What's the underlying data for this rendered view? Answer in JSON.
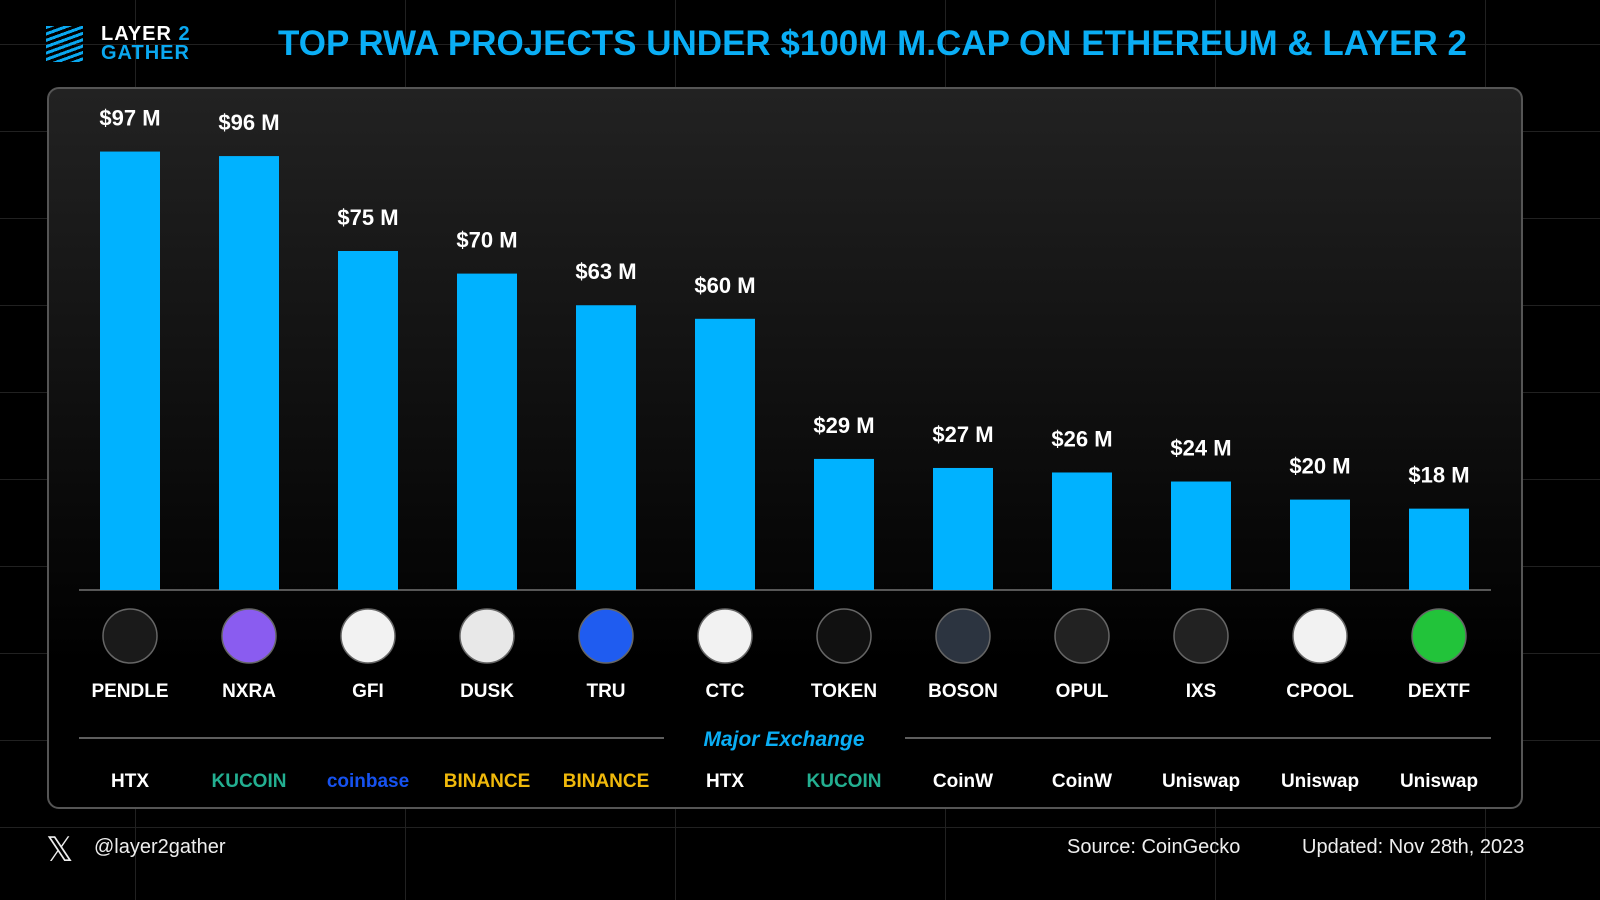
{
  "brand": {
    "line1": "LAYER",
    "line1_accent": "2",
    "line2": "GATHER"
  },
  "title": "TOP RWA PROJECTS UNDER $100M M.CAP ON ETHEREUM & LAYER 2",
  "chart_data": {
    "type": "bar",
    "title": "TOP RWA PROJECTS UNDER $100M M.CAP ON ETHEREUM & LAYER 2",
    "categories": [
      "PENDLE",
      "NXRA",
      "GFI",
      "DUSK",
      "TRU",
      "CTC",
      "TOKEN",
      "BOSON",
      "OPUL",
      "IXS",
      "CPOOL",
      "DEXTF"
    ],
    "values": [
      97,
      96,
      75,
      70,
      63,
      60,
      29,
      27,
      26,
      24,
      20,
      18
    ],
    "labels": [
      "$97 M",
      "$96 M",
      "$75 M",
      "$70 M",
      "$63 M",
      "$60 M",
      "$29 M",
      "$27 M",
      "$26 M",
      "$24 M",
      "$20 M",
      "$18 M"
    ],
    "unit": "USD millions",
    "ylim": [
      0,
      100
    ],
    "grid": false,
    "bar_color": "#00b2ff",
    "icon_colors": [
      "#1a1a1a",
      "#8a5cf0",
      "#f2f2f2",
      "#e8e8e8",
      "#1f5cf0",
      "#f2f2f2",
      "#111",
      "#2c3440",
      "#222",
      "#222",
      "#f2f2f2",
      "#22c33a"
    ]
  },
  "exchange_header": "Major Exchange",
  "exchanges": [
    {
      "name": "HTX",
      "color": "#ffffff"
    },
    {
      "name": "KUCOIN",
      "color": "#23af91"
    },
    {
      "name": "coinbase",
      "color": "#1652f0"
    },
    {
      "name": "BINANCE",
      "color": "#f0b90b"
    },
    {
      "name": "BINANCE",
      "color": "#f0b90b"
    },
    {
      "name": "HTX",
      "color": "#ffffff"
    },
    {
      "name": "KUCOIN",
      "color": "#23af91"
    },
    {
      "name": "CoinW",
      "color": "#ffffff"
    },
    {
      "name": "CoinW",
      "color": "#ffffff"
    },
    {
      "name": "Uniswap",
      "color": "#ffffff"
    },
    {
      "name": "Uniswap",
      "color": "#ffffff"
    },
    {
      "name": "Uniswap",
      "color": "#ffffff"
    }
  ],
  "footer": {
    "handle": "@layer2gather",
    "source": "Source: CoinGecko",
    "updated": "Updated: Nov 28th, 2023"
  }
}
